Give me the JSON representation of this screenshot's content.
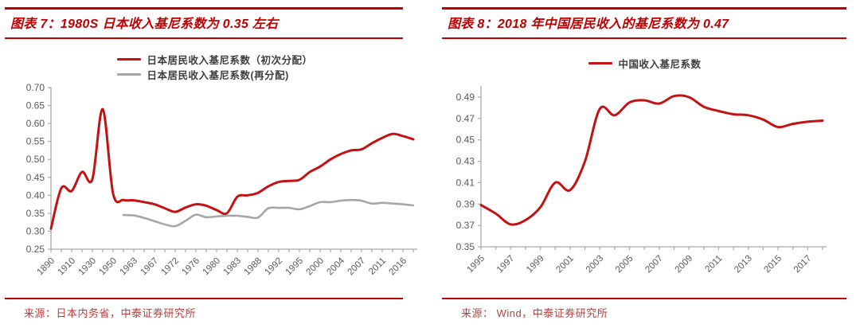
{
  "colors": {
    "accent_red": "#c00000",
    "line_red": "#c41212",
    "line_gray": "#a6a6a6",
    "axis_gray": "#a9a9a9",
    "tick_label_gray": "#595959",
    "legend_text": "#3d3d3d",
    "source_text": "#b44242"
  },
  "panels": [
    {
      "title": "图表 7：1980S 日本收入基尼系数为 0.35 左右",
      "source": "来源：日本内务省，中泰证券研究所"
    },
    {
      "title": "图表 8：2018 年中国居民收入的基尼系数为 0.47",
      "source": "来源： Wind，中泰证券研究所"
    }
  ],
  "chart_data": [
    {
      "type": "line",
      "title": "图表 7：1980S 日本收入基尼系数为 0.35 左右",
      "xlabel": "",
      "ylabel": "",
      "ylim": [
        0.25,
        0.7
      ],
      "ystep": 0.05,
      "grid": false,
      "legend_position": "top",
      "label_step": 2,
      "categories": [
        1890,
        1900,
        1910,
        1920,
        1930,
        1940,
        1950,
        1956,
        1963,
        1965,
        1967,
        1970,
        1972,
        1974,
        1976,
        1978,
        1980,
        1981,
        1983,
        1986,
        1988,
        1990,
        1992,
        1993,
        1995,
        1998,
        2000,
        2002,
        2004,
        2005,
        2007,
        2009,
        2011,
        2014,
        2016,
        2017
      ],
      "x_tick_labels": [
        1890,
        1910,
        1930,
        1950,
        1963,
        1967,
        1972,
        1976,
        1980,
        1983,
        1988,
        1992,
        1995,
        2000,
        2004,
        2007,
        2011,
        2016
      ],
      "series": [
        {
          "name": "日本居民收入基尼系数（初次分配）",
          "color": "#c41212",
          "width": 3,
          "values": [
            0.307,
            0.42,
            0.412,
            0.465,
            0.445,
            0.64,
            0.405,
            0.387,
            0.386,
            0.381,
            0.375,
            0.364,
            0.354,
            0.366,
            0.375,
            0.371,
            0.359,
            0.35,
            0.396,
            0.4,
            0.407,
            0.425,
            0.437,
            0.44,
            0.443,
            0.465,
            0.48,
            0.5,
            0.515,
            0.525,
            0.528,
            0.545,
            0.56,
            0.571,
            0.565,
            0.556
          ]
        },
        {
          "name": "日本居民收入基尼系数(再分配)",
          "color": "#a6a6a6",
          "width": 2.6,
          "values": [
            null,
            null,
            null,
            null,
            null,
            null,
            null,
            0.345,
            0.344,
            0.337,
            0.328,
            0.319,
            0.314,
            0.329,
            0.346,
            0.339,
            0.341,
            0.343,
            0.343,
            0.34,
            0.338,
            0.364,
            0.365,
            0.365,
            0.361,
            0.37,
            0.381,
            0.381,
            0.385,
            0.387,
            0.385,
            0.377,
            0.379,
            0.377,
            0.375,
            0.372
          ]
        }
      ]
    },
    {
      "type": "line",
      "title": "图表 8：2018 年中国居民收入的基尼系数为 0.47",
      "xlabel": "",
      "ylabel": "",
      "ylim": [
        0.35,
        0.49
      ],
      "ystep": 0.02,
      "grid": false,
      "legend_position": "top",
      "label_step": 2,
      "categories": [
        1995,
        1996,
        1997,
        1998,
        1999,
        2000,
        2001,
        2002,
        2003,
        2004,
        2005,
        2006,
        2007,
        2008,
        2009,
        2010,
        2011,
        2012,
        2013,
        2014,
        2015,
        2016,
        2017,
        2018
      ],
      "x_tick_labels": [
        1995,
        1997,
        1999,
        2001,
        2003,
        2005,
        2007,
        2009,
        2011,
        2013,
        2015,
        2017
      ],
      "series": [
        {
          "name": "中国收入基尼系数",
          "color": "#c41212",
          "width": 3,
          "values": [
            0.389,
            0.381,
            0.371,
            0.375,
            0.387,
            0.41,
            0.403,
            0.43,
            0.479,
            0.473,
            0.485,
            0.487,
            0.484,
            0.491,
            0.49,
            0.481,
            0.477,
            0.474,
            0.473,
            0.469,
            0.462,
            0.465,
            0.467,
            0.468
          ]
        }
      ]
    }
  ]
}
